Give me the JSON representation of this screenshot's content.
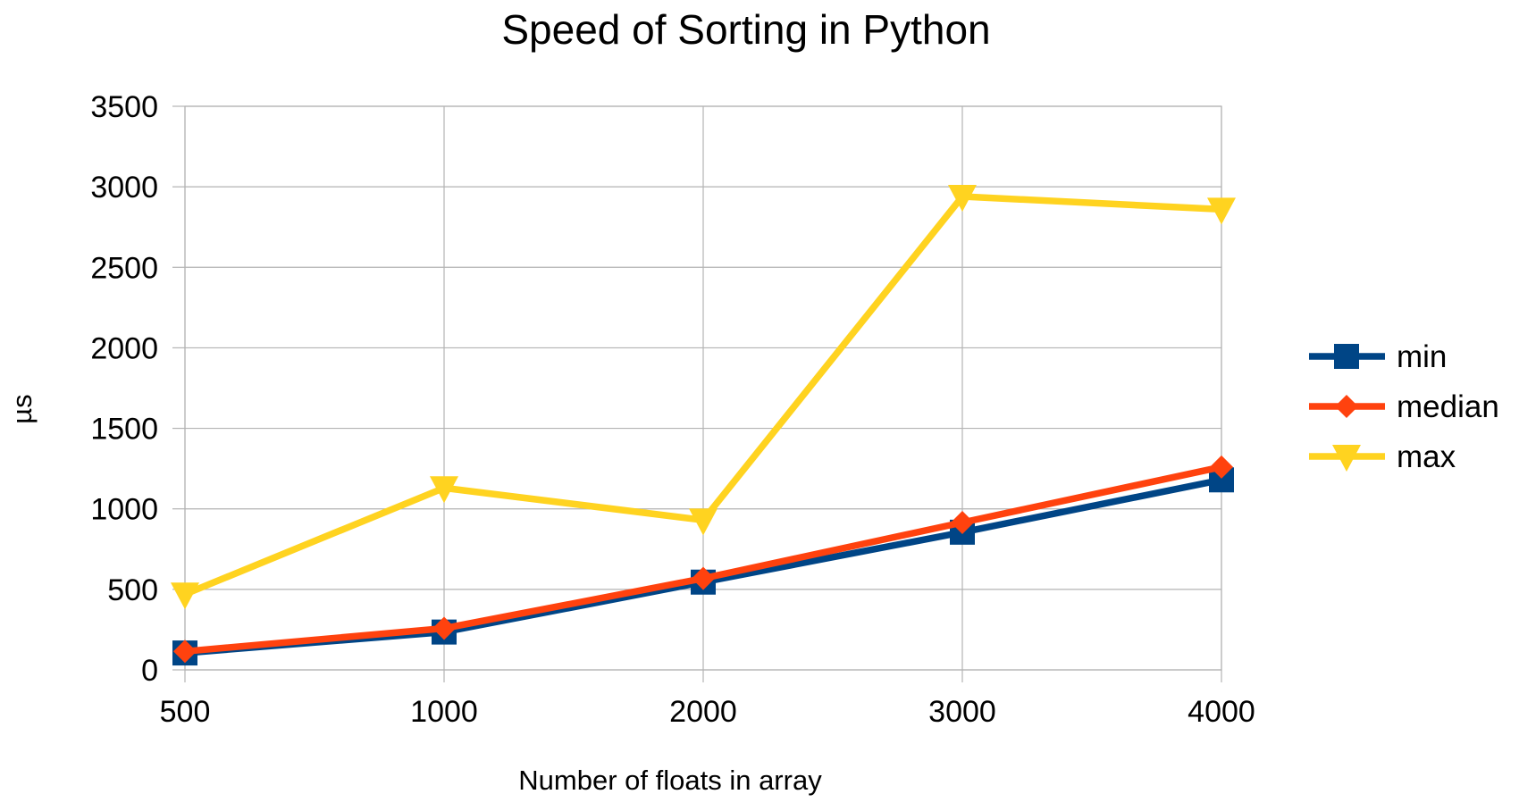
{
  "chart_data": {
    "type": "line",
    "title": "Speed of Sorting in Python",
    "xlabel": "Number of floats in array",
    "ylabel": "µs",
    "categories": [
      "500",
      "1000",
      "2000",
      "3000",
      "4000"
    ],
    "ylim": [
      0,
      3500
    ],
    "yticks": [
      0,
      500,
      1000,
      1500,
      2000,
      2500,
      3000,
      3500
    ],
    "grid": true,
    "legend_position": "right",
    "series": [
      {
        "name": "min",
        "values": [
          105,
          235,
          545,
          855,
          1180
        ],
        "color": "#004586",
        "marker": "square"
      },
      {
        "name": "median",
        "values": [
          115,
          258,
          568,
          915,
          1260
        ],
        "color": "#ff420e",
        "marker": "diamond"
      },
      {
        "name": "max",
        "values": [
          470,
          1130,
          930,
          2940,
          2860
        ],
        "color": "#ffd320",
        "marker": "triangle-down"
      }
    ]
  }
}
